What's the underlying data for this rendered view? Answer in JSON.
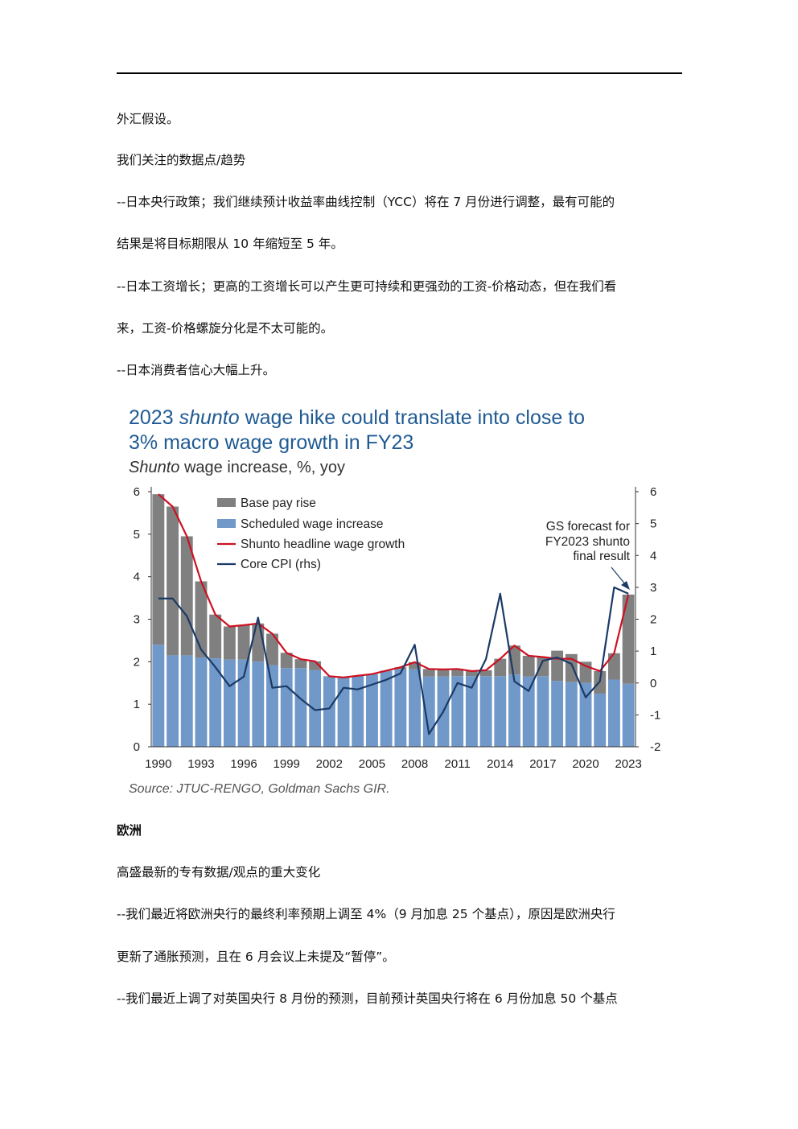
{
  "paragraphs": {
    "p1": "外汇假设。",
    "p2": "我们关注的数据点/趋势",
    "p3": "--日本央行政策；我们继续预计收益率曲线控制（YCC）将在 7 月份进行调整，最有可能的",
    "p4": "结果是将目标期限从 10 年缩短至 5 年。",
    "p5": "--日本工资增长；更高的工资增长可以产生更可持续和更强劲的工资-价格动态，但在我们看",
    "p6": "来，工资-价格螺旋分化是不太可能的。",
    "p7": "--日本消费者信心大幅上升。",
    "p8": "欧洲",
    "p9": "高盛最新的专有数据/观点的重大变化",
    "p10": "--我们最近将欧洲央行的最终利率预期上调至 4%（9 月加息 25 个基点），原因是欧洲央行",
    "p11": "更新了通胀预测，且在 6 月会议上未提及“暂停”。",
    "p12": "--我们最近上调了对英国央行 8 月份的预测，目前预计英国央行将在 6 月份加息 50 个基点"
  },
  "chart_data": {
    "type": "bar",
    "title_part1": "2023 ",
    "title_italic": "shunto",
    "title_part2": " wage hike could translate into close to",
    "title_line2": "3% macro wage growth in FY23",
    "subtitle_italic": "Shunto",
    "subtitle_rest": " wage increase, %, yoy",
    "source": "Source: JTUC-RENGO, Goldman Sachs GIR.",
    "annotation": [
      "GS forecast for",
      "FY2023 shunto",
      "final result"
    ],
    "x": [
      1990,
      1991,
      1992,
      1993,
      1994,
      1995,
      1996,
      1997,
      1998,
      1999,
      2000,
      2001,
      2002,
      2003,
      2004,
      2005,
      2006,
      2007,
      2008,
      2009,
      2010,
      2011,
      2012,
      2013,
      2014,
      2015,
      2016,
      2017,
      2018,
      2019,
      2020,
      2021,
      2022,
      2023
    ],
    "x_tick_labels": [
      "1990",
      "1993",
      "1996",
      "1999",
      "2002",
      "2005",
      "2008",
      "2011",
      "2014",
      "2017",
      "2020",
      "2023"
    ],
    "ylim_left": [
      0,
      6
    ],
    "ylim_right": [
      -2,
      6
    ],
    "y_ticks_left": [
      "0",
      "1",
      "2",
      "3",
      "4",
      "5",
      "6"
    ],
    "y_ticks_right": [
      "-2",
      "-1",
      "0",
      "1",
      "2",
      "3",
      "4",
      "5",
      "6"
    ],
    "series": [
      {
        "name": "Base pay rise",
        "kind": "bar_top",
        "color": "#808080",
        "values": [
          5.94,
          5.65,
          4.95,
          3.89,
          3.11,
          2.83,
          2.86,
          2.9,
          2.66,
          2.21,
          2.06,
          2.01,
          1.66,
          1.63,
          1.67,
          1.71,
          1.79,
          1.87,
          1.99,
          1.83,
          1.82,
          1.83,
          1.78,
          1.8,
          2.07,
          2.38,
          2.14,
          2.11,
          2.26,
          2.18,
          2.0,
          1.78,
          2.2,
          3.58
        ]
      },
      {
        "name": "Scheduled wage increase",
        "kind": "bar_base",
        "color": "#7098c8",
        "values": [
          2.4,
          2.15,
          2.15,
          2.1,
          2.08,
          2.05,
          2.05,
          2.0,
          1.92,
          1.85,
          1.85,
          1.8,
          1.66,
          1.63,
          1.67,
          1.71,
          1.79,
          1.82,
          1.82,
          1.65,
          1.65,
          1.66,
          1.66,
          1.66,
          1.66,
          1.7,
          1.65,
          1.66,
          1.55,
          1.52,
          1.5,
          1.25,
          1.58,
          1.48
        ]
      },
      {
        "name": "Shunto headline wage growth",
        "kind": "line_left",
        "color": "#cc1122",
        "values": [
          5.94,
          5.65,
          4.95,
          3.89,
          3.11,
          2.83,
          2.86,
          2.9,
          2.66,
          2.21,
          2.06,
          2.01,
          1.66,
          1.63,
          1.67,
          1.71,
          1.79,
          1.87,
          1.99,
          1.83,
          1.82,
          1.83,
          1.78,
          1.8,
          2.07,
          2.38,
          2.14,
          2.11,
          2.07,
          2.07,
          1.9,
          1.78,
          2.2,
          3.58
        ]
      },
      {
        "name": "Core CPI (rhs)",
        "kind": "line_right",
        "color": "#1b3a66",
        "values": [
          2.65,
          2.65,
          2.1,
          1.05,
          0.5,
          -0.1,
          0.2,
          2.05,
          -0.15,
          -0.1,
          -0.5,
          -0.85,
          -0.8,
          -0.15,
          -0.2,
          -0.05,
          0.1,
          0.3,
          1.2,
          -1.6,
          -0.9,
          0.0,
          -0.15,
          0.75,
          2.8,
          0.05,
          -0.25,
          0.7,
          0.8,
          0.6,
          -0.45,
          0.05,
          3.0,
          2.8
        ]
      }
    ],
    "legend_position": "top-left",
    "grid": false
  }
}
